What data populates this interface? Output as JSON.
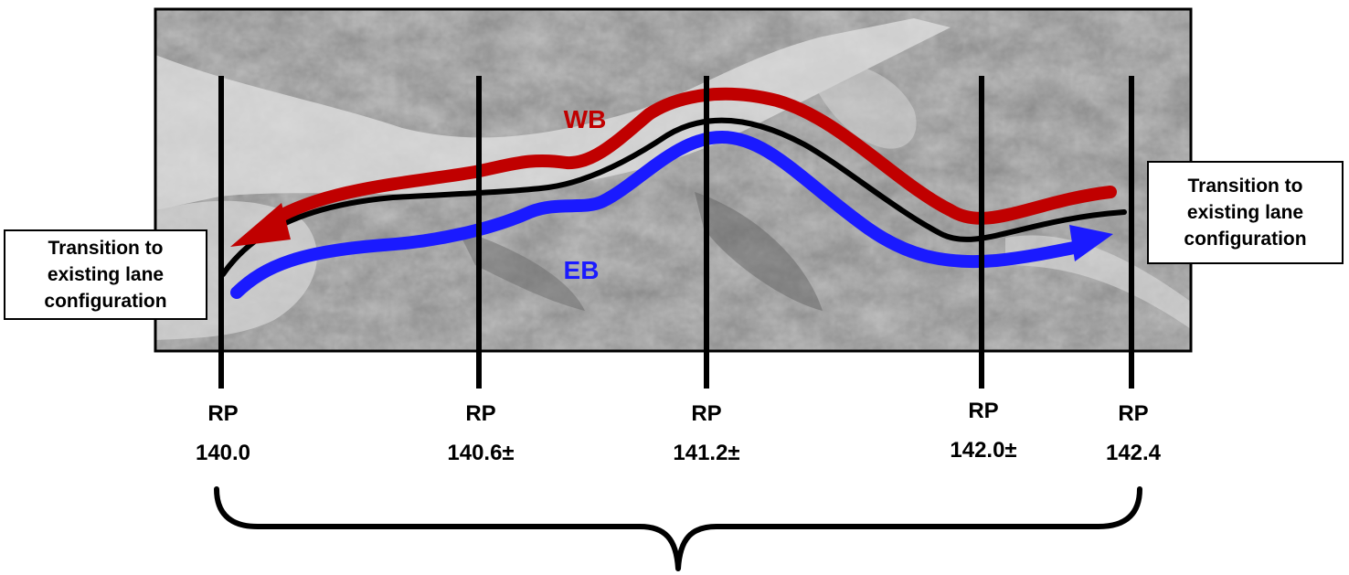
{
  "title": "",
  "directions": {
    "westbound": {
      "label": "WB",
      "color": "#c00000"
    },
    "eastbound": {
      "label": "EB",
      "color": "#1a1aff"
    }
  },
  "transition_labels": {
    "west_end": "Transition to\nexisting lane\nconfiguration",
    "east_end": "Transition to\nexisting lane\nconfiguration"
  },
  "reference_points": [
    {
      "prefix": "RP",
      "value": "140.0"
    },
    {
      "prefix": "RP",
      "value": "140.6±"
    },
    {
      "prefix": "RP",
      "value": "141.2±"
    },
    {
      "prefix": "RP",
      "value": "142.0±"
    },
    {
      "prefix": "RP",
      "value": "142.4"
    }
  ],
  "colors": {
    "centerline": "#000000",
    "background_aerial": "#8c8c8c",
    "marker_lines": "#000000"
  }
}
